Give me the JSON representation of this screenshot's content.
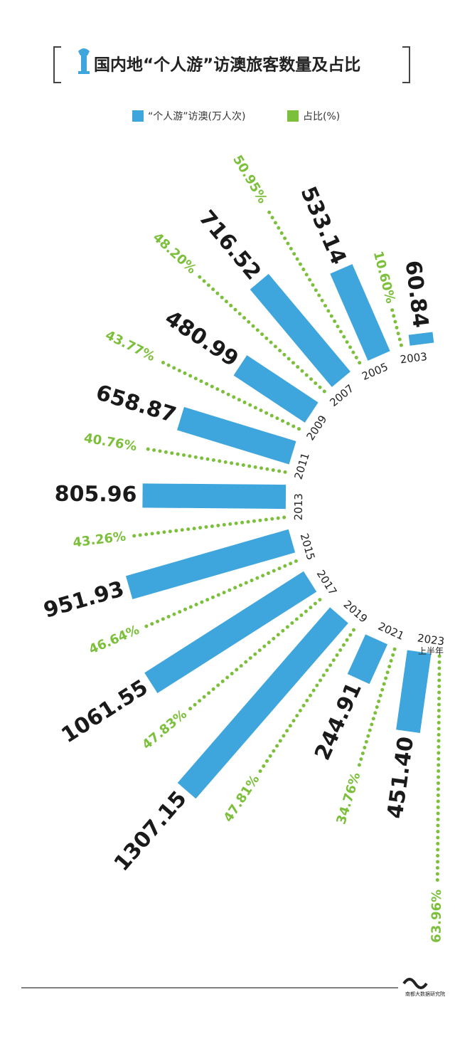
{
  "chart_data": {
    "type": "radial_bar",
    "title": "国内地“个人游”访澳旅客数量及占比",
    "categories": [
      "2003",
      "2005",
      "2007",
      "2009",
      "2011",
      "2013",
      "2015",
      "2017",
      "2019",
      "2021",
      "2023"
    ],
    "category_note": "上半年",
    "series": [
      {
        "name": "“个人游”访澳(万人次)",
        "color": "#3ea6dd",
        "values": [
          60.84,
          533.14,
          716.52,
          480.99,
          658.87,
          805.96,
          951.93,
          1061.55,
          1307.15,
          244.91,
          451.4
        ],
        "value_labels": [
          "60.84",
          "533.14",
          "716.52",
          "480.99",
          "658.87",
          "805.96",
          "951.93",
          "1061.55",
          "1307.15",
          "244.91",
          "451.40"
        ]
      },
      {
        "name": "占比(%)",
        "color": "#7bbf3a",
        "values": [
          10.6,
          50.95,
          48.2,
          43.77,
          40.76,
          43.26,
          46.64,
          47.83,
          47.81,
          34.76,
          63.96
        ],
        "value_labels": [
          "10.60%",
          "50.95%",
          "48.20%",
          "43.77%",
          "40.76%",
          "43.26%",
          "46.64%",
          "47.83%",
          "47.81%",
          "34.76%",
          "63.96%"
        ]
      }
    ],
    "source": "南都大数据研究院"
  }
}
